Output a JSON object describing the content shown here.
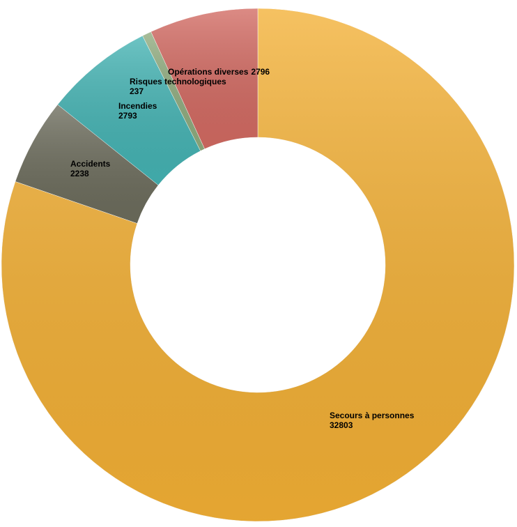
{
  "chart_data": {
    "type": "donut",
    "categories": [
      "Secours à personnes",
      "Accidents",
      "Incendies",
      "Risques technologiques",
      "Opérations diverses"
    ],
    "values": [
      32803,
      2238,
      2793,
      237,
      2796
    ],
    "colors": [
      "#f3b035",
      "#6c6c5c",
      "#44b3b3",
      "#8fab7e",
      "#d26a62"
    ]
  }
}
